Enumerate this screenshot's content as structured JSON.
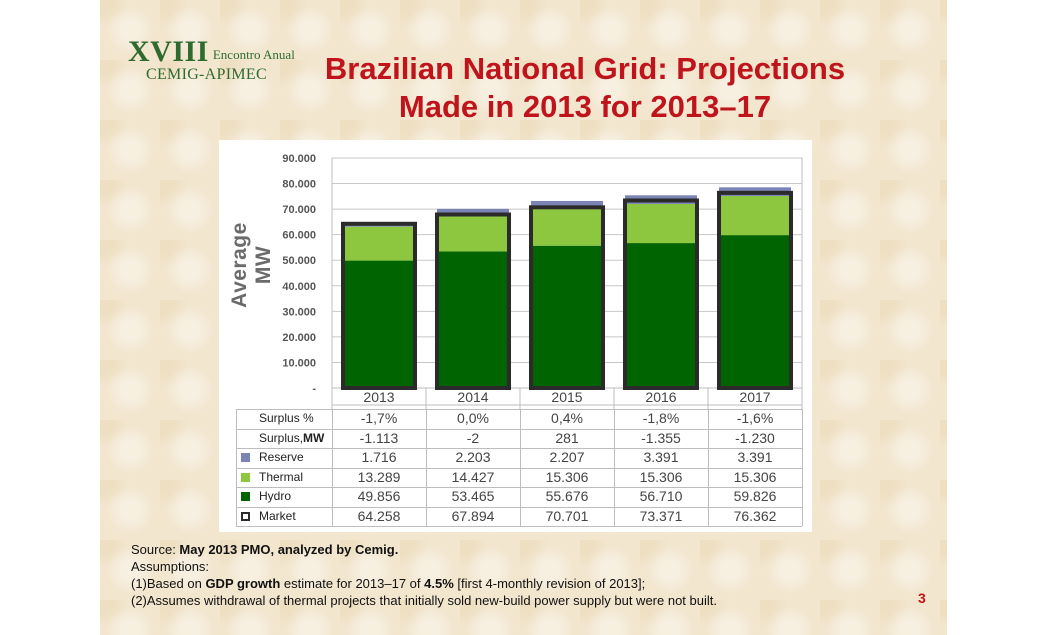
{
  "logo": {
    "roman": "XVIII",
    "sub": "Encontro Anual",
    "org": "CEMIG-APIMEC"
  },
  "title": {
    "line1": "Brazilian National Grid: Projections",
    "line2": "Made in 2013 for 2013–17"
  },
  "chart_data": {
    "type": "bar",
    "stacked": true,
    "ylabel": "Average MW",
    "ylim": [
      0,
      90000
    ],
    "y_ticks": [
      "-",
      "10.000",
      "20.000",
      "30.000",
      "40.000",
      "50.000",
      "60.000",
      "70.000",
      "80.000",
      "90.000"
    ],
    "categories": [
      "2013",
      "2014",
      "2015",
      "2016",
      "2017"
    ],
    "series": [
      {
        "name": "Hydro",
        "color": "#006400",
        "values": [
          49856,
          53465,
          55676,
          56710,
          59826
        ]
      },
      {
        "name": "Thermal",
        "color": "#8dc63f",
        "values": [
          13289,
          14427,
          15306,
          15306,
          15306
        ]
      },
      {
        "name": "Reserve",
        "color": "#7b84b5",
        "values": [
          1716,
          2203,
          2207,
          3391,
          3391
        ]
      }
    ],
    "market": {
      "name": "Market",
      "values": [
        64258,
        67894,
        70701,
        73371,
        76362
      ]
    },
    "grid": true
  },
  "table": {
    "rows": [
      {
        "label": "Surplus %",
        "label_bold": "",
        "key": "none",
        "values": [
          "-1,7%",
          "0,0%",
          "0,4%",
          "-1,8%",
          "-1,6%"
        ]
      },
      {
        "label": "Surplus, ",
        "label_bold": "MW",
        "key": "none",
        "values": [
          "-1.113",
          "-2",
          "281",
          "-1.355",
          "-1.230"
        ]
      },
      {
        "label": "Reserve",
        "label_bold": "",
        "key": "reserve",
        "values": [
          "1.716",
          "2.203",
          "2.207",
          "3.391",
          "3.391"
        ]
      },
      {
        "label": "Thermal",
        "label_bold": "",
        "key": "thermal",
        "values": [
          "13.289",
          "14.427",
          "15.306",
          "15.306",
          "15.306"
        ]
      },
      {
        "label": "Hydro",
        "label_bold": "",
        "key": "hydro",
        "values": [
          "49.856",
          "53.465",
          "55.676",
          "56.710",
          "59.826"
        ]
      },
      {
        "label": "Market",
        "label_bold": "",
        "key": "market",
        "values": [
          "64.258",
          "67.894",
          "70.701",
          "73.371",
          "76.362"
        ]
      }
    ]
  },
  "footer": {
    "source_prefix": "Source: ",
    "source_bold": "May 2013 PMO, analyzed by Cemig.",
    "assumptions_label": "Assumptions:",
    "a1_prefix": "(1)Based on ",
    "a1_bold1": "GDP growth",
    "a1_mid": " estimate for 2013–17 of ",
    "a1_bold2": "4.5%",
    "a1_suffix": "  [first 4-monthly revision of 2013];",
    "a2": "(2)Assumes withdrawal of thermal projects that initially sold new-build power supply but were not built."
  },
  "page_number": "3"
}
